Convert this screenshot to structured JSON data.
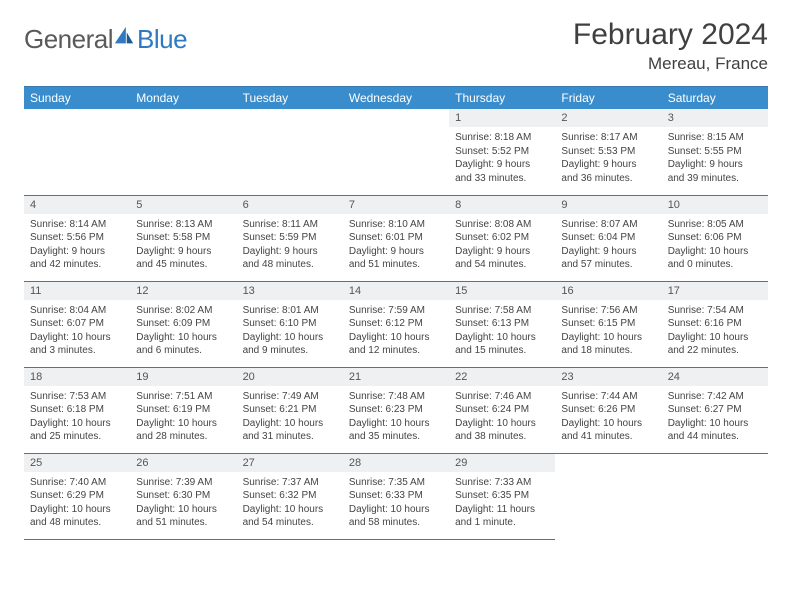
{
  "brand": {
    "part1": "General",
    "part2": "Blue"
  },
  "title": "February 2024",
  "location": "Mereau, France",
  "colors": {
    "header_bg": "#3a8dcc",
    "header_border": "#3a7aaf",
    "daynum_bg": "#eef0f2",
    "brand_blue": "#2f7ac0",
    "text": "#404040"
  },
  "typography": {
    "title_fontsize": 30,
    "location_fontsize": 17,
    "dayhead_fontsize": 12,
    "body_fontsize": 10
  },
  "weekdays": [
    "Sunday",
    "Monday",
    "Tuesday",
    "Wednesday",
    "Thursday",
    "Friday",
    "Saturday"
  ],
  "weeks": [
    [
      null,
      null,
      null,
      null,
      {
        "n": "1",
        "sunrise": "Sunrise: 8:18 AM",
        "sunset": "Sunset: 5:52 PM",
        "day1": "Daylight: 9 hours",
        "day2": "and 33 minutes."
      },
      {
        "n": "2",
        "sunrise": "Sunrise: 8:17 AM",
        "sunset": "Sunset: 5:53 PM",
        "day1": "Daylight: 9 hours",
        "day2": "and 36 minutes."
      },
      {
        "n": "3",
        "sunrise": "Sunrise: 8:15 AM",
        "sunset": "Sunset: 5:55 PM",
        "day1": "Daylight: 9 hours",
        "day2": "and 39 minutes."
      }
    ],
    [
      {
        "n": "4",
        "sunrise": "Sunrise: 8:14 AM",
        "sunset": "Sunset: 5:56 PM",
        "day1": "Daylight: 9 hours",
        "day2": "and 42 minutes."
      },
      {
        "n": "5",
        "sunrise": "Sunrise: 8:13 AM",
        "sunset": "Sunset: 5:58 PM",
        "day1": "Daylight: 9 hours",
        "day2": "and 45 minutes."
      },
      {
        "n": "6",
        "sunrise": "Sunrise: 8:11 AM",
        "sunset": "Sunset: 5:59 PM",
        "day1": "Daylight: 9 hours",
        "day2": "and 48 minutes."
      },
      {
        "n": "7",
        "sunrise": "Sunrise: 8:10 AM",
        "sunset": "Sunset: 6:01 PM",
        "day1": "Daylight: 9 hours",
        "day2": "and 51 minutes."
      },
      {
        "n": "8",
        "sunrise": "Sunrise: 8:08 AM",
        "sunset": "Sunset: 6:02 PM",
        "day1": "Daylight: 9 hours",
        "day2": "and 54 minutes."
      },
      {
        "n": "9",
        "sunrise": "Sunrise: 8:07 AM",
        "sunset": "Sunset: 6:04 PM",
        "day1": "Daylight: 9 hours",
        "day2": "and 57 minutes."
      },
      {
        "n": "10",
        "sunrise": "Sunrise: 8:05 AM",
        "sunset": "Sunset: 6:06 PM",
        "day1": "Daylight: 10 hours",
        "day2": "and 0 minutes."
      }
    ],
    [
      {
        "n": "11",
        "sunrise": "Sunrise: 8:04 AM",
        "sunset": "Sunset: 6:07 PM",
        "day1": "Daylight: 10 hours",
        "day2": "and 3 minutes."
      },
      {
        "n": "12",
        "sunrise": "Sunrise: 8:02 AM",
        "sunset": "Sunset: 6:09 PM",
        "day1": "Daylight: 10 hours",
        "day2": "and 6 minutes."
      },
      {
        "n": "13",
        "sunrise": "Sunrise: 8:01 AM",
        "sunset": "Sunset: 6:10 PM",
        "day1": "Daylight: 10 hours",
        "day2": "and 9 minutes."
      },
      {
        "n": "14",
        "sunrise": "Sunrise: 7:59 AM",
        "sunset": "Sunset: 6:12 PM",
        "day1": "Daylight: 10 hours",
        "day2": "and 12 minutes."
      },
      {
        "n": "15",
        "sunrise": "Sunrise: 7:58 AM",
        "sunset": "Sunset: 6:13 PM",
        "day1": "Daylight: 10 hours",
        "day2": "and 15 minutes."
      },
      {
        "n": "16",
        "sunrise": "Sunrise: 7:56 AM",
        "sunset": "Sunset: 6:15 PM",
        "day1": "Daylight: 10 hours",
        "day2": "and 18 minutes."
      },
      {
        "n": "17",
        "sunrise": "Sunrise: 7:54 AM",
        "sunset": "Sunset: 6:16 PM",
        "day1": "Daylight: 10 hours",
        "day2": "and 22 minutes."
      }
    ],
    [
      {
        "n": "18",
        "sunrise": "Sunrise: 7:53 AM",
        "sunset": "Sunset: 6:18 PM",
        "day1": "Daylight: 10 hours",
        "day2": "and 25 minutes."
      },
      {
        "n": "19",
        "sunrise": "Sunrise: 7:51 AM",
        "sunset": "Sunset: 6:19 PM",
        "day1": "Daylight: 10 hours",
        "day2": "and 28 minutes."
      },
      {
        "n": "20",
        "sunrise": "Sunrise: 7:49 AM",
        "sunset": "Sunset: 6:21 PM",
        "day1": "Daylight: 10 hours",
        "day2": "and 31 minutes."
      },
      {
        "n": "21",
        "sunrise": "Sunrise: 7:48 AM",
        "sunset": "Sunset: 6:23 PM",
        "day1": "Daylight: 10 hours",
        "day2": "and 35 minutes."
      },
      {
        "n": "22",
        "sunrise": "Sunrise: 7:46 AM",
        "sunset": "Sunset: 6:24 PM",
        "day1": "Daylight: 10 hours",
        "day2": "and 38 minutes."
      },
      {
        "n": "23",
        "sunrise": "Sunrise: 7:44 AM",
        "sunset": "Sunset: 6:26 PM",
        "day1": "Daylight: 10 hours",
        "day2": "and 41 minutes."
      },
      {
        "n": "24",
        "sunrise": "Sunrise: 7:42 AM",
        "sunset": "Sunset: 6:27 PM",
        "day1": "Daylight: 10 hours",
        "day2": "and 44 minutes."
      }
    ],
    [
      {
        "n": "25",
        "sunrise": "Sunrise: 7:40 AM",
        "sunset": "Sunset: 6:29 PM",
        "day1": "Daylight: 10 hours",
        "day2": "and 48 minutes."
      },
      {
        "n": "26",
        "sunrise": "Sunrise: 7:39 AM",
        "sunset": "Sunset: 6:30 PM",
        "day1": "Daylight: 10 hours",
        "day2": "and 51 minutes."
      },
      {
        "n": "27",
        "sunrise": "Sunrise: 7:37 AM",
        "sunset": "Sunset: 6:32 PM",
        "day1": "Daylight: 10 hours",
        "day2": "and 54 minutes."
      },
      {
        "n": "28",
        "sunrise": "Sunrise: 7:35 AM",
        "sunset": "Sunset: 6:33 PM",
        "day1": "Daylight: 10 hours",
        "day2": "and 58 minutes."
      },
      {
        "n": "29",
        "sunrise": "Sunrise: 7:33 AM",
        "sunset": "Sunset: 6:35 PM",
        "day1": "Daylight: 11 hours",
        "day2": "and 1 minute."
      },
      null,
      null
    ]
  ]
}
